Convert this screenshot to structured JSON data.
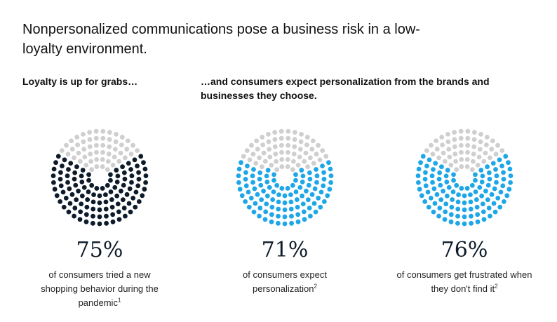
{
  "title": "Nonpersonalized communications pose a business risk in a low-loyalty environment.",
  "subtitles": {
    "left": "Loyalty is up for grabs…",
    "right": "…and consumers expect personalization from the brands and businesses they choose."
  },
  "colors": {
    "empty": "#cfcfcf",
    "navy": "#0d1b2a",
    "blue": "#1ea7e8"
  },
  "chart_data": [
    {
      "type": "dot-ring",
      "value": 75,
      "label": "75%",
      "caption": "of consumers tried a new shopping behavior during the pandemic",
      "footnote": "1",
      "color": "#0d1b2a"
    },
    {
      "type": "dot-ring",
      "value": 71,
      "label": "71%",
      "caption": "of consumers expect personalization",
      "footnote": "2",
      "color": "#1ea7e8"
    },
    {
      "type": "dot-ring",
      "value": 76,
      "label": "76%",
      "caption": "of consumers get frustrated when they don't find it",
      "footnote": "2",
      "color": "#1ea7e8"
    }
  ]
}
